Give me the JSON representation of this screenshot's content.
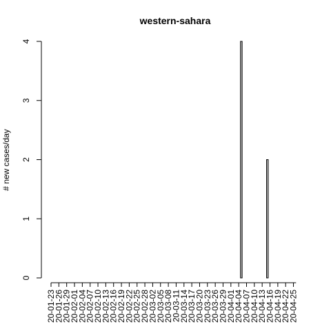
{
  "chart_data": {
    "type": "bar",
    "title": "western-sahara",
    "xlabel": "",
    "ylabel": "# new cases/day",
    "ylim": [
      0,
      4
    ],
    "y_ticks": [
      "0",
      "1",
      "2",
      "3",
      "4"
    ],
    "x_tick_labels": [
      "20-01-23",
      "20-01-26",
      "20-01-29",
      "20-02-01",
      "20-02-04",
      "20-02-07",
      "20-02-10",
      "20-02-13",
      "20-02-16",
      "20-02-19",
      "20-02-22",
      "20-02-25",
      "20-02-28",
      "20-03-02",
      "20-03-05",
      "20-03-08",
      "20-03-11",
      "20-03-14",
      "20-03-17",
      "20-03-20",
      "20-03-23",
      "20-03-26",
      "20-03-29",
      "20-04-01",
      "20-04-04",
      "20-04-07",
      "20-04-10",
      "20-04-13",
      "20-04-16",
      "20-04-19",
      "20-04-22",
      "20-04-25"
    ],
    "start_date": "2020-01-23",
    "end_date": "2020-04-26",
    "nonzero": [
      {
        "date": "2020-04-05",
        "value": 4
      },
      {
        "date": "2020-04-15",
        "value": 2
      }
    ],
    "grid": false,
    "legend": "none"
  }
}
